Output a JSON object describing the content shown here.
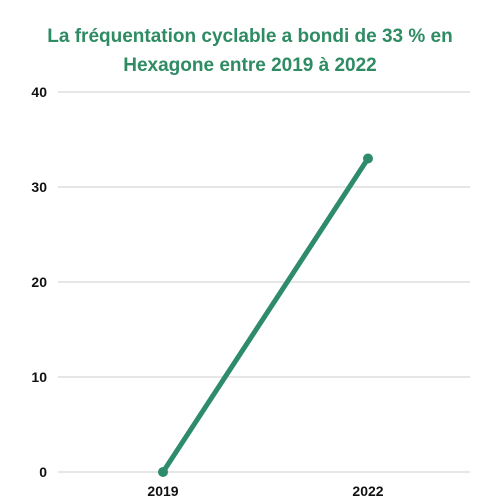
{
  "chart_data": {
    "type": "line",
    "title_lines": [
      "La fréquentation cyclable a bondi de 33 % en",
      "Hexagone entre 2019 à 2022"
    ],
    "categories": [
      "2019",
      "2022"
    ],
    "series": [
      {
        "values": [
          0,
          33
        ]
      }
    ],
    "ylim": [
      0,
      40
    ],
    "yticks": [
      0,
      10,
      20,
      30,
      40
    ],
    "xlabel": "",
    "ylabel": "",
    "grid": true,
    "line_color": "#2e8b6b",
    "grid_color": "#cccccc"
  }
}
